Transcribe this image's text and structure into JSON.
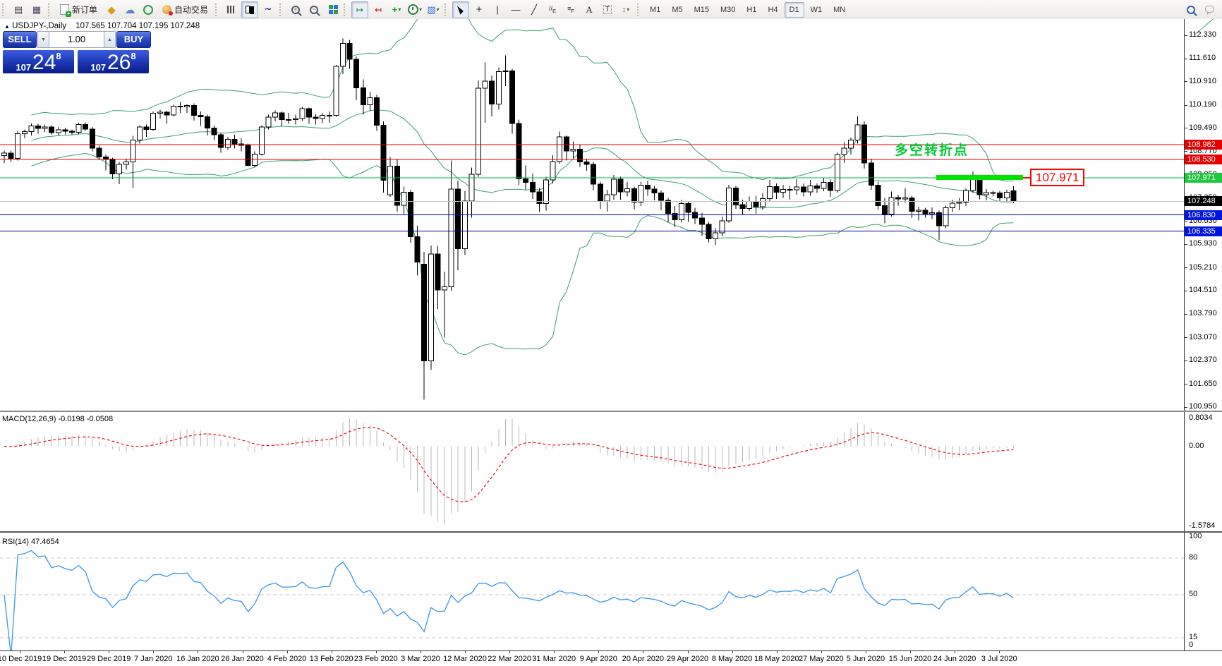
{
  "toolbar": {
    "new_order_label": "新订单",
    "autotrade_label": "自动交易",
    "timeframes": [
      "M1",
      "M5",
      "M15",
      "M30",
      "H1",
      "H4",
      "D1",
      "W1",
      "MN"
    ],
    "active_timeframe": "D1"
  },
  "chart_header": {
    "symbol_period": "USDJPY-,Daily",
    "ohlc": "107.565 107.704 107.195 107.248"
  },
  "trade_panel": {
    "sell_label": "SELL",
    "buy_label": "BUY",
    "volume": "1.00",
    "bid": {
      "prefix": "107",
      "big": "24",
      "sup": "8"
    },
    "ask": {
      "prefix": "107",
      "big": "26",
      "sup": "8"
    }
  },
  "chart_data": {
    "type": "candlestick",
    "symbol": "USDJPY",
    "timeframe": "Daily",
    "ohlc_current": {
      "open": 107.565,
      "high": 107.704,
      "low": 107.195,
      "close": 107.248
    },
    "price_axis_ticks": [
      "112.330",
      "111.610",
      "110.910",
      "110.190",
      "109.490",
      "108.770",
      "108.050",
      "107.350",
      "106.630",
      "105.930",
      "105.210",
      "104.510",
      "103.790",
      "103.070",
      "102.370",
      "101.650",
      "100.950"
    ],
    "time_axis_labels": [
      "10 Dec 2019",
      "19 Dec 2019",
      "29 Dec 2019",
      "7 Jan 2020",
      "16 Jan 2020",
      "26 Jan 2020",
      "4 Feb 2020",
      "13 Feb 2020",
      "23 Feb 2020",
      "3 Mar 2020",
      "12 Mar 2020",
      "22 Mar 2020",
      "31 Mar 2020",
      "9 Apr 2020",
      "20 Apr 2020",
      "29 Apr 2020",
      "8 May 2020",
      "18 May 2020",
      "27 May 2020",
      "5 Jun 2020",
      "15 Jun 2020",
      "24 Jun 2020",
      "3 Jul 2020"
    ],
    "levels": [
      {
        "price": 108.982,
        "label": "108.982",
        "color": "#e60000",
        "tag_bg": "#e60000",
        "width": 1
      },
      {
        "price": 108.53,
        "label": "108.530",
        "color": "#e60000",
        "tag_bg": "#e60000",
        "width": 1
      },
      {
        "price": 107.971,
        "label": "107.971",
        "color": "#00b44c",
        "tag_bg": "#1fc93f",
        "width": 1
      },
      {
        "price": 107.248,
        "label": "107.248",
        "color": "#c0c0c0",
        "tag_bg": "#000000",
        "width": 1
      },
      {
        "price": 106.83,
        "label": "106.830",
        "color": "#0000e6",
        "tag_bg": "#0014dd",
        "width": 1
      },
      {
        "price": 106.335,
        "label": "106.335",
        "color": "#000090",
        "tag_bg": "#0014dd",
        "width": 1
      }
    ],
    "highlight": {
      "text": "多空转折点",
      "callout": "107.971",
      "segment_price": 107.971,
      "segment_x": [
        1327,
        1450
      ]
    },
    "indicators": {
      "bollinger": {
        "period": 20,
        "deviation": 2,
        "color": "#3aa06a"
      },
      "macd": {
        "label": "MACD(12,26,9) -0.0198 -0.0508",
        "fast": 12,
        "slow": 26,
        "signal_period": 9,
        "value": -0.0198,
        "signal_value": -0.0508,
        "hist_color": "#b8b8b8",
        "signal_color": "#e60000",
        "axis_labels": [
          "0.8034",
          "0.00",
          "-1.5784"
        ],
        "axis_max": 0.8034,
        "axis_min": -1.5784
      },
      "rsi": {
        "label": "RSI(14) 47.4654",
        "period": 14,
        "value": 47.4654,
        "color": "#3a96e8",
        "levels": [
          80,
          50,
          15
        ],
        "axis_labels": [
          "100",
          "80",
          "50",
          "15",
          "0"
        ],
        "range": [
          0,
          100
        ]
      }
    },
    "ylim": [
      100.84,
      112.83
    ],
    "grid": false,
    "legend_position": "none",
    "bars": [
      [
        108.65,
        108.8,
        108.42,
        108.72
      ],
      [
        108.72,
        108.8,
        108.45,
        108.56
      ],
      [
        108.56,
        109.4,
        108.5,
        109.32
      ],
      [
        109.32,
        109.45,
        109.18,
        109.38
      ],
      [
        109.38,
        109.63,
        109.26,
        109.55
      ],
      [
        109.55,
        109.62,
        109.32,
        109.48
      ],
      [
        109.48,
        109.6,
        109.37,
        109.52
      ],
      [
        109.52,
        109.58,
        109.28,
        109.35
      ],
      [
        109.35,
        109.52,
        109.25,
        109.44
      ],
      [
        109.44,
        109.5,
        109.3,
        109.39
      ],
      [
        109.39,
        109.45,
        109.28,
        109.36
      ],
      [
        109.36,
        109.65,
        109.3,
        109.6
      ],
      [
        109.6,
        109.66,
        109.4,
        109.46
      ],
      [
        109.46,
        109.52,
        108.78,
        108.87
      ],
      [
        108.87,
        108.95,
        108.52,
        108.61
      ],
      [
        108.61,
        108.68,
        108.2,
        108.54
      ],
      [
        108.54,
        108.58,
        107.92,
        108.09
      ],
      [
        108.09,
        108.45,
        107.77,
        108.38
      ],
      [
        108.38,
        108.55,
        108.22,
        108.45
      ],
      [
        108.45,
        109.25,
        107.65,
        109.12
      ],
      [
        109.12,
        109.58,
        109.02,
        109.52
      ],
      [
        109.52,
        109.6,
        109.22,
        109.45
      ],
      [
        109.45,
        110.0,
        109.4,
        109.94
      ],
      [
        109.94,
        110.05,
        109.78,
        109.98
      ],
      [
        109.98,
        110.02,
        109.62,
        109.89
      ],
      [
        109.89,
        110.2,
        109.85,
        110.16
      ],
      [
        110.16,
        110.29,
        109.95,
        110.14
      ],
      [
        110.14,
        110.22,
        109.96,
        110.18
      ],
      [
        110.18,
        110.25,
        109.72,
        109.88
      ],
      [
        109.88,
        110.0,
        109.56,
        109.84
      ],
      [
        109.84,
        109.9,
        109.26,
        109.49
      ],
      [
        109.49,
        109.58,
        109.12,
        109.28
      ],
      [
        109.28,
        109.35,
        108.73,
        108.9
      ],
      [
        108.9,
        109.22,
        108.82,
        109.14
      ],
      [
        109.14,
        109.28,
        108.86,
        109.0
      ],
      [
        109.0,
        109.18,
        108.78,
        108.96
      ],
      [
        108.96,
        109.02,
        108.31,
        108.35
      ],
      [
        108.35,
        108.78,
        108.3,
        108.69
      ],
      [
        108.69,
        109.58,
        108.65,
        109.52
      ],
      [
        109.52,
        109.9,
        109.45,
        109.82
      ],
      [
        109.82,
        110.03,
        109.7,
        109.96
      ],
      [
        109.96,
        110.0,
        109.55,
        109.75
      ],
      [
        109.75,
        109.95,
        109.62,
        109.75
      ],
      [
        109.75,
        109.9,
        109.6,
        109.78
      ],
      [
        109.78,
        110.14,
        109.72,
        110.08
      ],
      [
        110.08,
        110.12,
        109.62,
        109.82
      ],
      [
        109.82,
        109.92,
        109.6,
        109.78
      ],
      [
        109.78,
        109.95,
        109.64,
        109.88
      ],
      [
        109.88,
        110.0,
        109.65,
        109.88
      ],
      [
        109.88,
        111.42,
        109.84,
        111.38
      ],
      [
        111.38,
        112.23,
        111.14,
        112.08
      ],
      [
        112.08,
        112.19,
        111.3,
        111.6
      ],
      [
        111.6,
        111.68,
        110.34,
        110.72
      ],
      [
        110.72,
        110.98,
        109.9,
        110.2
      ],
      [
        110.2,
        110.6,
        110.02,
        110.42
      ],
      [
        110.42,
        110.5,
        109.4,
        109.58
      ],
      [
        109.58,
        109.7,
        107.51,
        107.89
      ],
      [
        107.45,
        108.6,
        107.38,
        108.32
      ],
      [
        108.32,
        108.55,
        106.93,
        107.13
      ],
      [
        107.13,
        107.7,
        106.86,
        107.53
      ],
      [
        107.53,
        107.6,
        105.98,
        106.16
      ],
      [
        106.16,
        106.5,
        104.98,
        105.39
      ],
      [
        105.32,
        105.7,
        101.18,
        102.36
      ],
      [
        102.36,
        105.9,
        102.1,
        105.64
      ],
      [
        105.64,
        105.88,
        103.95,
        104.53
      ],
      [
        104.53,
        105.1,
        103.08,
        104.63
      ],
      [
        104.63,
        108.5,
        104.5,
        107.62
      ],
      [
        107.62,
        107.88,
        105.14,
        105.8
      ],
      [
        105.8,
        107.56,
        105.6,
        107.26
      ],
      [
        107.26,
        108.28,
        106.75,
        108.08
      ],
      [
        108.08,
        110.95,
        108.0,
        110.71
      ],
      [
        110.71,
        111.5,
        109.65,
        110.93
      ],
      [
        110.93,
        111.1,
        109.85,
        110.22
      ],
      [
        110.22,
        111.35,
        110.05,
        111.22
      ],
      [
        111.22,
        111.71,
        110.78,
        111.24
      ],
      [
        111.24,
        111.3,
        109.32,
        109.63
      ],
      [
        109.63,
        109.75,
        107.74,
        107.94
      ],
      [
        107.94,
        108.35,
        107.6,
        107.83
      ],
      [
        107.83,
        108.1,
        107.32,
        107.54
      ],
      [
        107.54,
        107.66,
        106.92,
        107.18
      ],
      [
        107.18,
        108.0,
        106.96,
        107.9
      ],
      [
        107.9,
        108.66,
        107.8,
        108.47
      ],
      [
        108.47,
        109.38,
        108.4,
        109.22
      ],
      [
        109.22,
        109.26,
        108.5,
        108.79
      ],
      [
        108.79,
        109.08,
        108.56,
        108.84
      ],
      [
        108.84,
        108.98,
        108.3,
        108.45
      ],
      [
        108.45,
        108.55,
        108.18,
        108.38
      ],
      [
        108.38,
        108.45,
        107.58,
        107.77
      ],
      [
        107.77,
        107.85,
        107.02,
        107.26
      ],
      [
        107.26,
        107.6,
        106.93,
        107.45
      ],
      [
        107.45,
        108.05,
        107.3,
        107.93
      ],
      [
        107.93,
        108.0,
        107.3,
        107.54
      ],
      [
        107.54,
        107.85,
        107.4,
        107.63
      ],
      [
        107.63,
        107.7,
        107.0,
        107.22
      ],
      [
        107.22,
        107.85,
        107.1,
        107.74
      ],
      [
        107.74,
        107.88,
        107.42,
        107.62
      ],
      [
        107.62,
        107.72,
        107.28,
        107.5
      ],
      [
        107.5,
        107.58,
        106.98,
        107.28
      ],
      [
        107.28,
        107.35,
        106.6,
        106.88
      ],
      [
        106.88,
        107.1,
        106.46,
        106.68
      ],
      [
        106.68,
        107.3,
        106.6,
        107.18
      ],
      [
        107.18,
        107.25,
        106.62,
        106.91
      ],
      [
        106.91,
        107.05,
        106.55,
        106.74
      ],
      [
        106.74,
        106.9,
        106.2,
        106.54
      ],
      [
        106.54,
        106.62,
        105.99,
        106.1
      ],
      [
        106.1,
        106.42,
        105.92,
        106.28
      ],
      [
        106.28,
        106.78,
        106.18,
        106.65
      ],
      [
        106.65,
        107.75,
        106.6,
        107.65
      ],
      [
        107.65,
        107.72,
        107.02,
        107.15
      ],
      [
        107.15,
        107.3,
        106.82,
        107.03
      ],
      [
        107.03,
        107.4,
        106.95,
        107.25
      ],
      [
        107.25,
        107.42,
        106.87,
        107.08
      ],
      [
        107.08,
        107.5,
        107.0,
        107.33
      ],
      [
        107.33,
        107.9,
        107.25,
        107.7
      ],
      [
        107.7,
        107.8,
        107.32,
        107.53
      ],
      [
        107.53,
        107.75,
        107.35,
        107.61
      ],
      [
        107.61,
        107.72,
        107.3,
        107.6
      ],
      [
        107.6,
        107.92,
        107.45,
        107.69
      ],
      [
        107.69,
        107.8,
        107.4,
        107.54
      ],
      [
        107.54,
        107.9,
        107.42,
        107.72
      ],
      [
        107.72,
        107.8,
        107.5,
        107.64
      ],
      [
        107.64,
        107.97,
        107.56,
        107.83
      ],
      [
        107.83,
        107.92,
        107.38,
        107.58
      ],
      [
        107.58,
        108.75,
        107.52,
        108.68
      ],
      [
        108.68,
        109.06,
        108.42,
        108.88
      ],
      [
        108.88,
        109.2,
        108.68,
        109.12
      ],
      [
        109.12,
        109.85,
        109.02,
        109.59
      ],
      [
        109.59,
        109.7,
        108.25,
        108.42
      ],
      [
        108.42,
        108.55,
        107.6,
        107.74
      ],
      [
        107.74,
        107.85,
        106.99,
        107.12
      ],
      [
        107.12,
        107.35,
        106.58,
        106.86
      ],
      [
        106.86,
        107.55,
        106.78,
        107.36
      ],
      [
        107.36,
        107.45,
        107.12,
        107.32
      ],
      [
        107.32,
        107.64,
        107.2,
        107.35
      ],
      [
        107.35,
        107.42,
        106.74,
        106.94
      ],
      [
        106.94,
        107.08,
        106.66,
        106.97
      ],
      [
        106.97,
        107.05,
        106.75,
        106.87
      ],
      [
        106.87,
        107.06,
        106.7,
        106.9
      ],
      [
        106.9,
        106.96,
        106.06,
        106.5
      ],
      [
        106.5,
        107.12,
        106.42,
        107.05
      ],
      [
        107.05,
        107.3,
        106.92,
        107.19
      ],
      [
        107.19,
        107.35,
        106.98,
        107.22
      ],
      [
        107.22,
        107.64,
        107.1,
        107.58
      ],
      [
        107.58,
        108.16,
        107.5,
        107.93
      ],
      [
        107.93,
        107.97,
        107.31,
        107.45
      ],
      [
        107.45,
        107.62,
        107.28,
        107.51
      ],
      [
        107.51,
        107.58,
        107.4,
        107.5
      ],
      [
        107.5,
        107.56,
        107.24,
        107.35
      ],
      [
        107.35,
        107.6,
        107.26,
        107.53
      ],
      [
        107.565,
        107.704,
        107.195,
        107.248
      ]
    ]
  }
}
